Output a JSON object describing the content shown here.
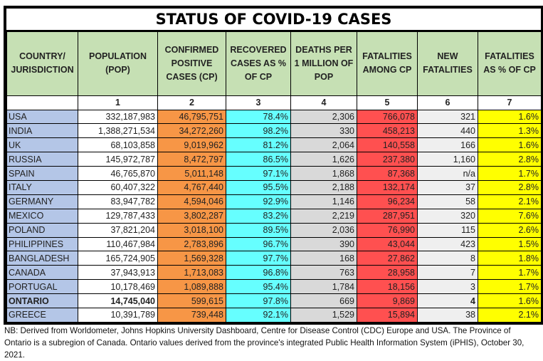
{
  "title": "STATUS OF COVID-19 CASES",
  "columns": [
    "COUNTRY/ JURISDICTION",
    "POPULATION (POP)",
    "CONFIRMED POSITIVE CASES (CP)",
    "RECOVERED CASES AS % OF CP",
    "DEATHS PER 1 MILLION OF POP",
    "FATALITIES AMONG CP",
    "NEW FATALITIES",
    "FATALITIES AS % OF CP"
  ],
  "column_numbers": [
    "",
    "1",
    "2",
    "3",
    "4",
    "5",
    "6",
    "7"
  ],
  "colors": {
    "header": "#c6e0b4",
    "country": "#b4c6e7",
    "confirmed": "#f79646",
    "recovered": "#66ffff",
    "deaths_per_million": "#d9d9d9",
    "fatalities": "#ff5050",
    "new_fatalities": "#efefef",
    "fatality_pct": "#ffff00"
  },
  "rows": [
    {
      "country": "USA",
      "population": "332,187,983",
      "confirmed": "46,795,751",
      "recovered_pct": "78.4%",
      "deaths_per_million": "2,306",
      "fatalities": "766,078",
      "new_fatalities": "321",
      "fatality_pct": "1.6%"
    },
    {
      "country": "INDIA",
      "population": "1,388,271,534",
      "confirmed": "34,272,260",
      "recovered_pct": "98.2%",
      "deaths_per_million": "330",
      "fatalities": "458,213",
      "new_fatalities": "440",
      "fatality_pct": "1.3%"
    },
    {
      "country": "UK",
      "population": "68,103,858",
      "confirmed": "9,019,962",
      "recovered_pct": "81.2%",
      "deaths_per_million": "2,064",
      "fatalities": "140,558",
      "new_fatalities": "166",
      "fatality_pct": "1.6%"
    },
    {
      "country": "RUSSIA",
      "population": "145,972,787",
      "confirmed": "8,472,797",
      "recovered_pct": "86.5%",
      "deaths_per_million": "1,626",
      "fatalities": "237,380",
      "new_fatalities": "1,160",
      "fatality_pct": "2.8%"
    },
    {
      "country": "SPAIN",
      "population": "46,765,870",
      "confirmed": "5,011,148",
      "recovered_pct": "97.1%",
      "deaths_per_million": "1,868",
      "fatalities": "87,368",
      "new_fatalities": "n/a",
      "fatality_pct": "1.7%"
    },
    {
      "country": "ITALY",
      "population": "60,407,322",
      "confirmed": "4,767,440",
      "recovered_pct": "95.5%",
      "deaths_per_million": "2,188",
      "fatalities": "132,174",
      "new_fatalities": "37",
      "fatality_pct": "2.8%"
    },
    {
      "country": "GERMANY",
      "population": "83,947,782",
      "confirmed": "4,594,046",
      "recovered_pct": "92.9%",
      "deaths_per_million": "1,146",
      "fatalities": "96,234",
      "new_fatalities": "58",
      "fatality_pct": "2.1%"
    },
    {
      "country": "MEXICO",
      "population": "129,787,433",
      "confirmed": "3,802,287",
      "recovered_pct": "83.2%",
      "deaths_per_million": "2,219",
      "fatalities": "287,951",
      "new_fatalities": "320",
      "fatality_pct": "7.6%"
    },
    {
      "country": "POLAND",
      "population": "37,821,204",
      "confirmed": "3,018,100",
      "recovered_pct": "89.5%",
      "deaths_per_million": "2,036",
      "fatalities": "76,990",
      "new_fatalities": "115",
      "fatality_pct": "2.6%"
    },
    {
      "country": "PHILIPPINES",
      "population": "110,467,984",
      "confirmed": "2,783,896",
      "recovered_pct": "96.7%",
      "deaths_per_million": "390",
      "fatalities": "43,044",
      "new_fatalities": "423",
      "fatality_pct": "1.5%"
    },
    {
      "country": "BANGLADESH",
      "population": "165,724,905",
      "confirmed": "1,569,328",
      "recovered_pct": "97.7%",
      "deaths_per_million": "168",
      "fatalities": "27,862",
      "new_fatalities": "8",
      "fatality_pct": "1.8%"
    },
    {
      "country": "CANADA",
      "population": "37,943,913",
      "confirmed": "1,713,083",
      "recovered_pct": "96.8%",
      "deaths_per_million": "763",
      "fatalities": "28,958",
      "new_fatalities": "7",
      "fatality_pct": "1.7%"
    },
    {
      "country": "PORTUGAL",
      "population": "10,178,469",
      "confirmed": "1,089,888",
      "recovered_pct": "95.4%",
      "deaths_per_million": "1,784",
      "fatalities": "18,156",
      "new_fatalities": "3",
      "fatality_pct": "1.7%"
    },
    {
      "country": "ONTARIO",
      "population": "14,745,040",
      "confirmed": "599,615",
      "recovered_pct": "97.8%",
      "deaths_per_million": "669",
      "fatalities": "9,869",
      "new_fatalities": "4",
      "fatality_pct": "1.6%",
      "bold": true
    },
    {
      "country": "GREECE",
      "population": "10,391,789",
      "confirmed": "739,448",
      "recovered_pct": "92.1%",
      "deaths_per_million": "1,529",
      "fatalities": "15,894",
      "new_fatalities": "38",
      "fatality_pct": "2.1%"
    }
  ],
  "note": "NB: Derived from Worldometer, Johns Hopkins University Dashboard, Centre for Disease Control (CDC) Europe and USA. The Province of Ontario is a subregion of Canada. Ontario values derived from the province's integrated Public Health Information System (iPHIS), October 30, 2021."
}
